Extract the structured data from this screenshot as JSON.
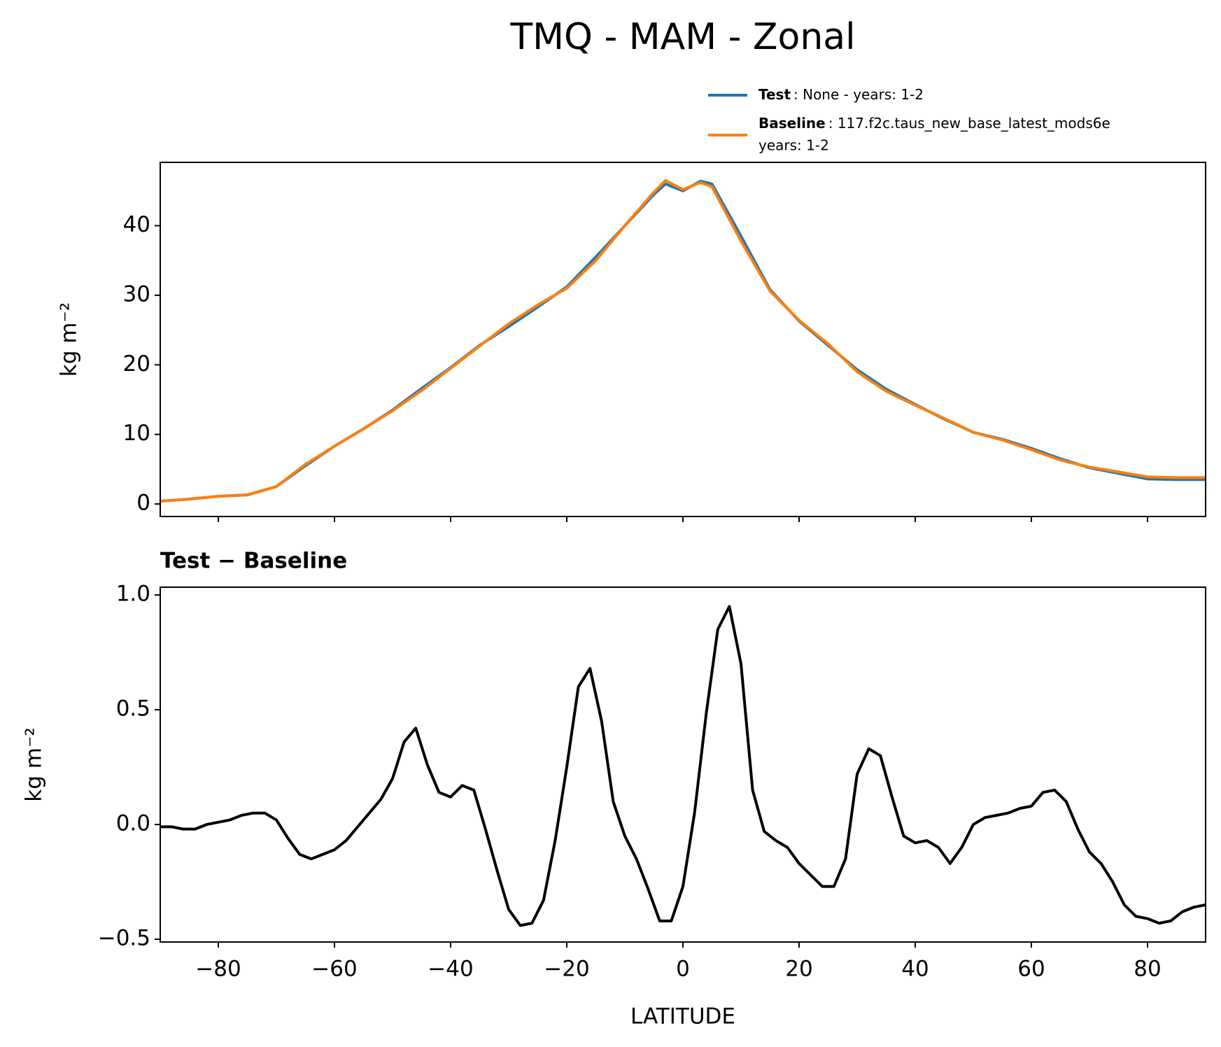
{
  "chart_data": [
    {
      "type": "line",
      "title": "TMQ - MAM - Zonal",
      "ylabel": "kg m⁻²",
      "xticklabels": false,
      "x": [
        -90,
        -85,
        -80,
        -75,
        -70,
        -65,
        -60,
        -55,
        -50,
        -45,
        -40,
        -35,
        -30,
        -25,
        -20,
        -15,
        -10,
        -5,
        -3,
        0,
        3,
        5,
        10,
        15,
        20,
        25,
        30,
        35,
        40,
        45,
        50,
        55,
        60,
        65,
        70,
        75,
        80,
        85,
        90
      ],
      "series": [
        {
          "name": "Test",
          "description": [
            ": None - years: 1-2"
          ],
          "color": "#1f77b4",
          "values": [
            0.4,
            0.7,
            1.1,
            1.3,
            2.5,
            5.5,
            8.3,
            10.8,
            13.5,
            16.6,
            19.6,
            22.8,
            25.5,
            28.3,
            31.2,
            35.5,
            40,
            44.5,
            46,
            45,
            46.4,
            46,
            38.5,
            30.8,
            26.3,
            22.8,
            19.3,
            16.5,
            14.3,
            12.2,
            10.3,
            9.3,
            8,
            6.5,
            5.2,
            4.4,
            3.6,
            3.5,
            3.5
          ]
        },
        {
          "name": "Baseline",
          "description": [
            ": 117.f2c.taus_new_base_latest_mods6e",
            "years: 1-2"
          ],
          "color": "#ff7f0e",
          "values": [
            0.4,
            0.7,
            1.1,
            1.3,
            2.5,
            5.7,
            8.3,
            10.8,
            13.4,
            16.3,
            19.5,
            22.7,
            25.9,
            28.6,
            31,
            35,
            40,
            44.8,
            46.5,
            45.2,
            46.2,
            45.6,
            37.8,
            30.6,
            26.4,
            23,
            19,
            16.2,
            14.2,
            12.3,
            10.3,
            9.2,
            7.8,
            6.3,
            5.3,
            4.6,
            3.9,
            3.8,
            3.8
          ]
        }
      ],
      "xlim": [
        -90,
        90
      ],
      "xticks": [
        -80,
        -60,
        -40,
        -20,
        0,
        20,
        40,
        60,
        80
      ],
      "ylim": [
        -1.8,
        49.1
      ],
      "yticks": [
        0,
        10,
        20,
        30,
        40
      ]
    },
    {
      "type": "line",
      "subtitle": "Test − Baseline",
      "ylabel": "kg m⁻²",
      "xlabel": "LATITUDE",
      "xticklabels": true,
      "x": [
        -90,
        -88,
        -86,
        -84,
        -82,
        -80,
        -78,
        -76,
        -74,
        -72,
        -70,
        -68,
        -66,
        -64,
        -62,
        -60,
        -58,
        -56,
        -54,
        -52,
        -50,
        -48,
        -46,
        -44,
        -42,
        -40,
        -38,
        -36,
        -34,
        -32,
        -30,
        -28,
        -26,
        -24,
        -22,
        -20,
        -18,
        -16,
        -14,
        -12,
        -10,
        -8,
        -6,
        -4,
        -2,
        0,
        2,
        4,
        6,
        8,
        10,
        12,
        14,
        16,
        18,
        20,
        22,
        24,
        26,
        28,
        30,
        32,
        34,
        36,
        38,
        40,
        42,
        44,
        46,
        48,
        50,
        52,
        54,
        56,
        58,
        60,
        62,
        64,
        66,
        68,
        70,
        72,
        74,
        76,
        78,
        80,
        82,
        84,
        86,
        88,
        90
      ],
      "series": [
        {
          "color": "#000000",
          "values": [
            -0.01,
            -0.01,
            -0.02,
            -0.02,
            0,
            0.01,
            0.02,
            0.04,
            0.05,
            0.05,
            0.02,
            -0.06,
            -0.13,
            -0.15,
            -0.13,
            -0.11,
            -0.07,
            -0.01,
            0.05,
            0.11,
            0.2,
            0.36,
            0.42,
            0.26,
            0.14,
            0.12,
            0.17,
            0.15,
            -0.02,
            -0.2,
            -0.37,
            -0.44,
            -0.43,
            -0.33,
            -0.07,
            0.25,
            0.6,
            0.68,
            0.45,
            0.1,
            -0.05,
            -0.15,
            -0.28,
            -0.42,
            -0.42,
            -0.27,
            0.05,
            0.48,
            0.85,
            0.95,
            0.7,
            0.15,
            -0.03,
            -0.07,
            -0.1,
            -0.17,
            -0.22,
            -0.27,
            -0.27,
            -0.15,
            0.22,
            0.33,
            0.3,
            0.12,
            -0.05,
            -0.08,
            -0.07,
            -0.1,
            -0.17,
            -0.1,
            0,
            0.03,
            0.04,
            0.05,
            0.07,
            0.08,
            0.14,
            0.15,
            0.1,
            -0.02,
            -0.12,
            -0.17,
            -0.25,
            -0.35,
            -0.4,
            -0.41,
            -0.43,
            -0.42,
            -0.38,
            -0.36,
            -0.35
          ]
        }
      ],
      "xlim": [
        -90,
        90
      ],
      "xticks": [
        {
          "value": -80,
          "label": "−80"
        },
        {
          "value": -60,
          "label": "−60"
        },
        {
          "value": -40,
          "label": "−40"
        },
        {
          "value": -20,
          "label": "−20"
        },
        0,
        20,
        40,
        60,
        80
      ],
      "ylim": [
        -0.512,
        1.034
      ],
      "yticks": [
        {
          "value": -0.5,
          "label": "−0.5"
        },
        {
          "value": 0,
          "label": "0.0"
        },
        0.5,
        {
          "value": 1,
          "label": "1.0"
        }
      ]
    }
  ]
}
